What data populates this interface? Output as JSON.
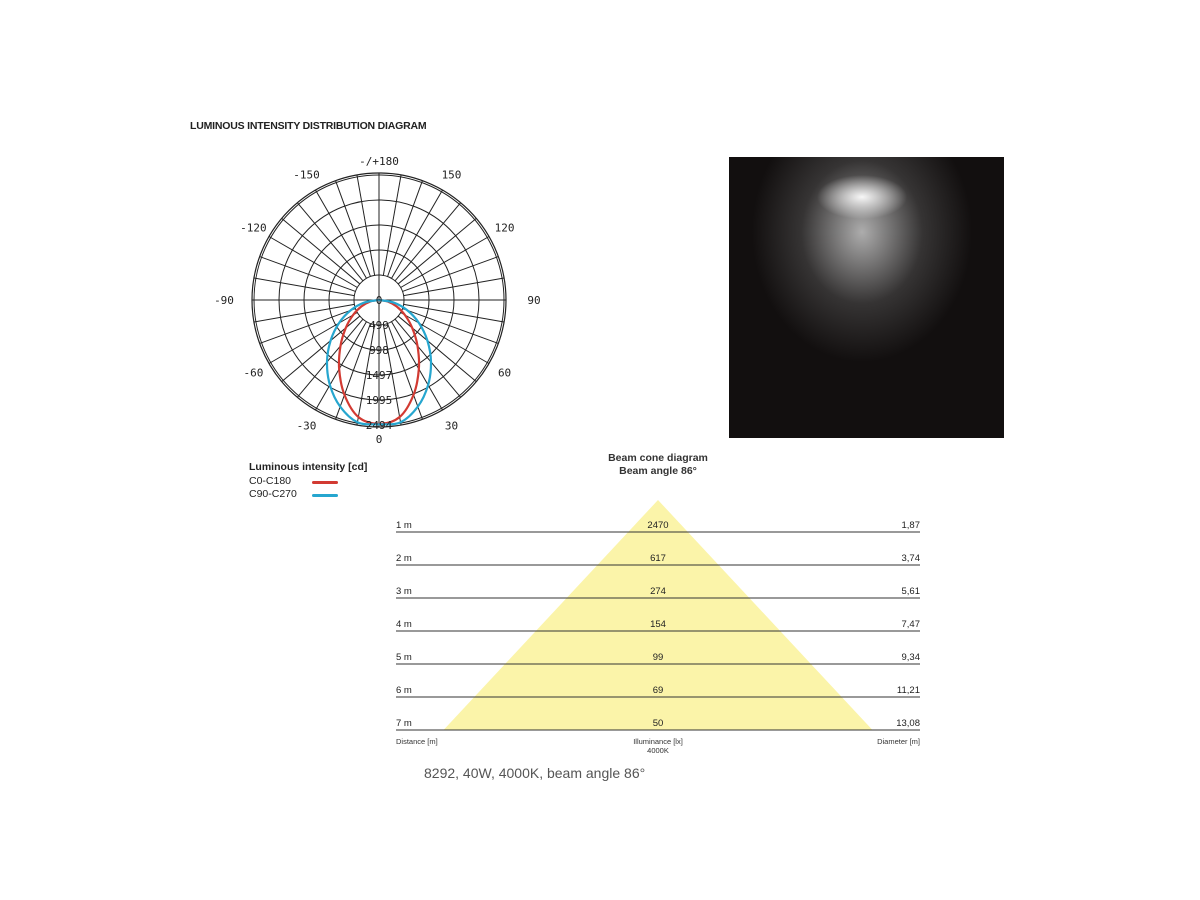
{
  "title": "LUMINOUS INTENSITY DISTRIBUTION DIAGRAM",
  "chart_data": [
    {
      "type": "polar",
      "angle_labels": [
        "-/+180",
        "150",
        "120",
        "90",
        "60",
        "30",
        "0",
        "-30",
        "-60",
        "-90",
        "-120",
        "-150"
      ],
      "radial_ticks": [
        499,
        998,
        1497,
        1995,
        2494
      ],
      "rmax": 2494,
      "angles_deg": [
        0,
        10,
        20,
        30,
        40,
        50,
        60,
        70,
        80,
        90
      ],
      "legend_title": "Luminous intensity [cd]",
      "series": [
        {
          "name": "C0-C180",
          "color": "#d23a32",
          "values": [
            2470,
            2370,
            2014,
            1590,
            1195,
            864,
            595,
            373,
            180,
            0
          ]
        },
        {
          "name": "C90-C270",
          "color": "#26a6cf",
          "values": [
            2480,
            2476,
            2264,
            1959,
            1614,
            1261,
            922,
            600,
            297,
            0
          ]
        }
      ]
    },
    {
      "type": "table",
      "title": "Beam cone diagram",
      "subtitle": "Beam angle 86°",
      "beam_angle_deg": 86,
      "cone_color": "#fbf4a9",
      "columns": [
        "Distance [m]",
        "Illuminance [lx]",
        "Diameter [m]"
      ],
      "illuminance_note": "4000K",
      "rows": [
        {
          "distance": "1 m",
          "illuminance": "2470",
          "diameter": "1,87"
        },
        {
          "distance": "2 m",
          "illuminance": "617",
          "diameter": "3,74"
        },
        {
          "distance": "3 m",
          "illuminance": "274",
          "diameter": "5,61"
        },
        {
          "distance": "4 m",
          "illuminance": "154",
          "diameter": "7,47"
        },
        {
          "distance": "5 m",
          "illuminance": "99",
          "diameter": "9,34"
        },
        {
          "distance": "6 m",
          "illuminance": "69",
          "diameter": "11,21"
        },
        {
          "distance": "7 m",
          "illuminance": "50",
          "diameter": "13,08"
        }
      ]
    }
  ],
  "caption": "8292, 40W, 4000K, beam angle 86°"
}
